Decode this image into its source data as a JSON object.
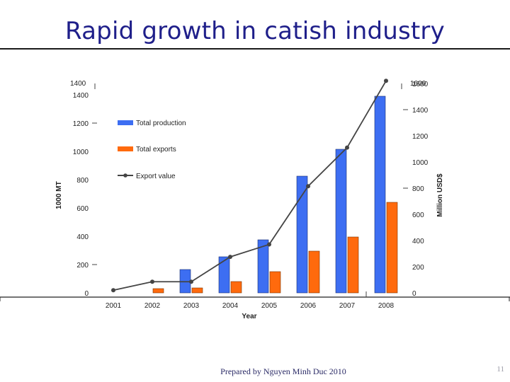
{
  "slide": {
    "title": "Rapid growth in catish industry",
    "footer": "Prepared by Nguyen Minh Duc 2010",
    "page_number": "11"
  },
  "chart_data": {
    "type": "bar",
    "categories": [
      "2001",
      "2002",
      "2003",
      "2004",
      "2005",
      "2006",
      "2007",
      "2008"
    ],
    "xlabel": "Year",
    "ylabel": "1000 MT",
    "y2label": "Million USD$",
    "ylim": [
      0,
      1400
    ],
    "y2lim": [
      0,
      1600
    ],
    "left_ticks": [
      "0",
      "200",
      "400",
      "600",
      "800",
      "1000",
      "1200",
      "1400"
    ],
    "left_top_label": "1400",
    "right_ticks": [
      "0",
      "200",
      "400",
      "600",
      "800",
      "1000",
      "1200",
      "1400",
      "1600"
    ],
    "right_top_label": "1600",
    "series": [
      {
        "name": "Total production",
        "kind": "bar",
        "axis": "left",
        "color": "#3d6ef2",
        "values": [
          0,
          0,
          165,
          255,
          375,
          825,
          1015,
          1390
        ]
      },
      {
        "name": "Total exports",
        "kind": "bar",
        "axis": "left",
        "color": "#ff6a0d",
        "values": [
          0,
          30,
          35,
          80,
          150,
          295,
          395,
          640
        ]
      },
      {
        "name": "Export value",
        "kind": "line",
        "axis": "right",
        "color": "#444444",
        "values": [
          20,
          85,
          85,
          275,
          370,
          815,
          1110,
          1620
        ]
      }
    ],
    "grid": false,
    "legend_position": "top-left"
  }
}
